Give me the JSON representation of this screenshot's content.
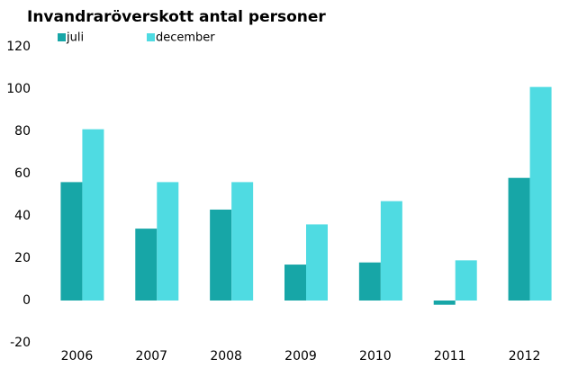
{
  "chart_data": {
    "type": "bar",
    "title": "Invandraröverskott antal personer",
    "categories": [
      "2006",
      "2007",
      "2008",
      "2009",
      "2010",
      "2011",
      "2012"
    ],
    "series": [
      {
        "name": "juli",
        "color": "#17a6a7",
        "values": [
          56,
          34,
          43,
          17,
          18,
          -2,
          58
        ]
      },
      {
        "name": "december",
        "color": "#4fdbe2",
        "values": [
          81,
          56,
          56,
          36,
          47,
          19,
          101
        ]
      }
    ],
    "ylim": [
      -20,
      120
    ],
    "yticks": [
      -20,
      0,
      20,
      40,
      60,
      80,
      100,
      120
    ],
    "grid": false
  }
}
